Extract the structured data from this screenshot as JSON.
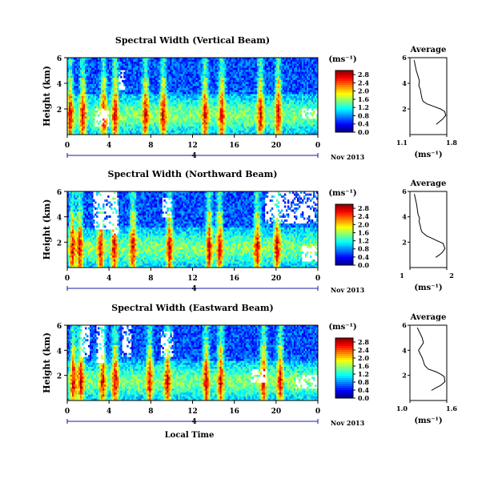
{
  "figure": {
    "date_label": "Nov 2013",
    "date_tick": "4",
    "xlabel": "Local Time",
    "unit_label": "(ms⁻¹)",
    "colormap": "jet",
    "colors": {
      "axis": "#000000",
      "date_bar": "#1a1aaa",
      "missing": "#ffffff"
    }
  },
  "chart_data": [
    {
      "type": "heatmap",
      "title": "Spectral Width (Vertical Beam)",
      "ylabel": "Height (km)",
      "xlim": [
        0,
        24
      ],
      "x_ticks": [
        "0",
        "4",
        "8",
        "12",
        "16",
        "20",
        "0"
      ],
      "ylim": [
        0,
        6
      ],
      "y_ticks": [
        "6",
        "4",
        "2"
      ],
      "colorbar": {
        "ticks": [
          "2.8",
          "2.4",
          "2.0",
          "1.6",
          "1.2",
          "0.8",
          "0.4",
          "0.0"
        ],
        "range": [
          0,
          3.0
        ]
      },
      "features": {
        "high_columns_hours": [
          0.3,
          1.5,
          3.5,
          4.6,
          7.5,
          9.2,
          13.2,
          14.8,
          18.5,
          20.2
        ],
        "gaps": [
          [
            2.6,
            4.0,
            0.6,
            2.0
          ],
          [
            5.0,
            5.5,
            3.5,
            5.0
          ],
          [
            22.5,
            24.0,
            1.2,
            2.0
          ]
        ]
      }
    },
    {
      "type": "line",
      "title": "Average",
      "xlabel": "(ms⁻¹)",
      "xlim": [
        1.1,
        1.8
      ],
      "x_ticks": [
        "1.1",
        "1.8"
      ],
      "ylim": [
        0,
        6
      ],
      "y_ticks": [
        "6",
        "4",
        "2"
      ],
      "series": [
        {
          "x": [
            1.18,
            1.2,
            1.22,
            1.25,
            1.28,
            1.27,
            1.3,
            1.31,
            1.32,
            1.33,
            1.35,
            1.42,
            1.55,
            1.68,
            1.76,
            1.78,
            1.72,
            1.66,
            1.6
          ],
          "y": [
            5.8,
            5.4,
            5.0,
            4.6,
            4.2,
            3.8,
            3.5,
            3.2,
            3.0,
            2.8,
            2.6,
            2.4,
            2.2,
            2.0,
            1.8,
            1.5,
            1.2,
            1.0,
            0.8
          ]
        }
      ]
    },
    {
      "type": "heatmap",
      "title": "Spectral Width (Northward Beam)",
      "ylabel": "Height (km)",
      "xlim": [
        0,
        24
      ],
      "x_ticks": [
        "0",
        "4",
        "8",
        "12",
        "16",
        "20",
        "0"
      ],
      "ylim": [
        0,
        6
      ],
      "y_ticks": [
        "6",
        "4",
        "2"
      ],
      "colorbar": {
        "ticks": [
          "2.8",
          "2.4",
          "2.0",
          "1.6",
          "1.2",
          "0.8",
          "0.4",
          "0.0"
        ],
        "range": [
          0,
          3.0
        ]
      },
      "features": {
        "high_columns_hours": [
          0.5,
          1.2,
          3.2,
          4.5,
          6.3,
          9.8,
          13.6,
          14.6,
          18.2,
          20.1
        ],
        "gaps": [
          [
            2.5,
            4.8,
            3.0,
            6.0
          ],
          [
            4.3,
            4.9,
            2.5,
            5.5
          ],
          [
            9.1,
            10.0,
            4.0,
            5.5
          ],
          [
            19.0,
            24.0,
            3.5,
            6.0
          ],
          [
            22.5,
            24.0,
            0.5,
            1.8
          ]
        ]
      }
    },
    {
      "type": "line",
      "title": "Average",
      "xlabel": "(ms⁻¹)",
      "xlim": [
        1.0,
        2.0
      ],
      "x_ticks": [
        "1",
        "2"
      ],
      "ylim": [
        0,
        6
      ],
      "y_ticks": [
        "6",
        "4",
        "2"
      ],
      "series": [
        {
          "x": [
            1.12,
            1.15,
            1.18,
            1.2,
            1.22,
            1.26,
            1.25,
            1.28,
            1.3,
            1.33,
            1.45,
            1.6,
            1.75,
            1.9,
            1.95,
            1.88,
            1.8,
            1.7
          ],
          "y": [
            5.8,
            5.4,
            5.0,
            4.6,
            4.2,
            3.9,
            3.6,
            3.3,
            3.0,
            2.8,
            2.5,
            2.3,
            2.1,
            1.9,
            1.5,
            1.2,
            1.0,
            0.8
          ]
        }
      ]
    },
    {
      "type": "heatmap",
      "title": "Spectral Width (Eastward Beam)",
      "ylabel": "Height (km)",
      "xlim": [
        0,
        24
      ],
      "x_ticks": [
        "0",
        "4",
        "8",
        "12",
        "16",
        "20",
        "0"
      ],
      "ylim": [
        0,
        6
      ],
      "y_ticks": [
        "6",
        "4",
        "2"
      ],
      "colorbar": {
        "ticks": [
          "2.8",
          "2.4",
          "2.0",
          "1.6",
          "1.2",
          "0.8",
          "0.4",
          "0.0"
        ],
        "range": [
          0,
          3.0
        ]
      },
      "features": {
        "high_columns_hours": [
          0.6,
          1.3,
          3.4,
          4.6,
          7.9,
          9.6,
          13.3,
          14.7,
          18.8,
          20.4
        ],
        "gaps": [
          [
            1.2,
            2.2,
            3.5,
            6.0
          ],
          [
            2.8,
            3.6,
            3.0,
            6.0
          ],
          [
            5.2,
            6.2,
            3.5,
            6.0
          ],
          [
            9.0,
            10.2,
            3.5,
            5.5
          ],
          [
            17.5,
            19.0,
            1.5,
            2.5
          ],
          [
            21.8,
            24.0,
            1.0,
            2.0
          ]
        ]
      }
    },
    {
      "type": "line",
      "title": "Average",
      "xlabel": "(ms⁻¹)",
      "xlim": [
        1.0,
        1.6
      ],
      "x_ticks": [
        "1.0",
        "1.6"
      ],
      "ylim": [
        0,
        6
      ],
      "y_ticks": [
        "6",
        "4",
        "2"
      ],
      "series": [
        {
          "x": [
            1.12,
            1.16,
            1.2,
            1.22,
            1.18,
            1.14,
            1.17,
            1.2,
            1.22,
            1.24,
            1.3,
            1.42,
            1.5,
            1.56,
            1.57,
            1.5,
            1.42,
            1.35
          ],
          "y": [
            5.8,
            5.4,
            5.0,
            4.6,
            4.3,
            4.0,
            3.7,
            3.4,
            3.1,
            2.8,
            2.5,
            2.3,
            2.1,
            1.9,
            1.5,
            1.2,
            1.0,
            0.8
          ]
        }
      ]
    }
  ]
}
